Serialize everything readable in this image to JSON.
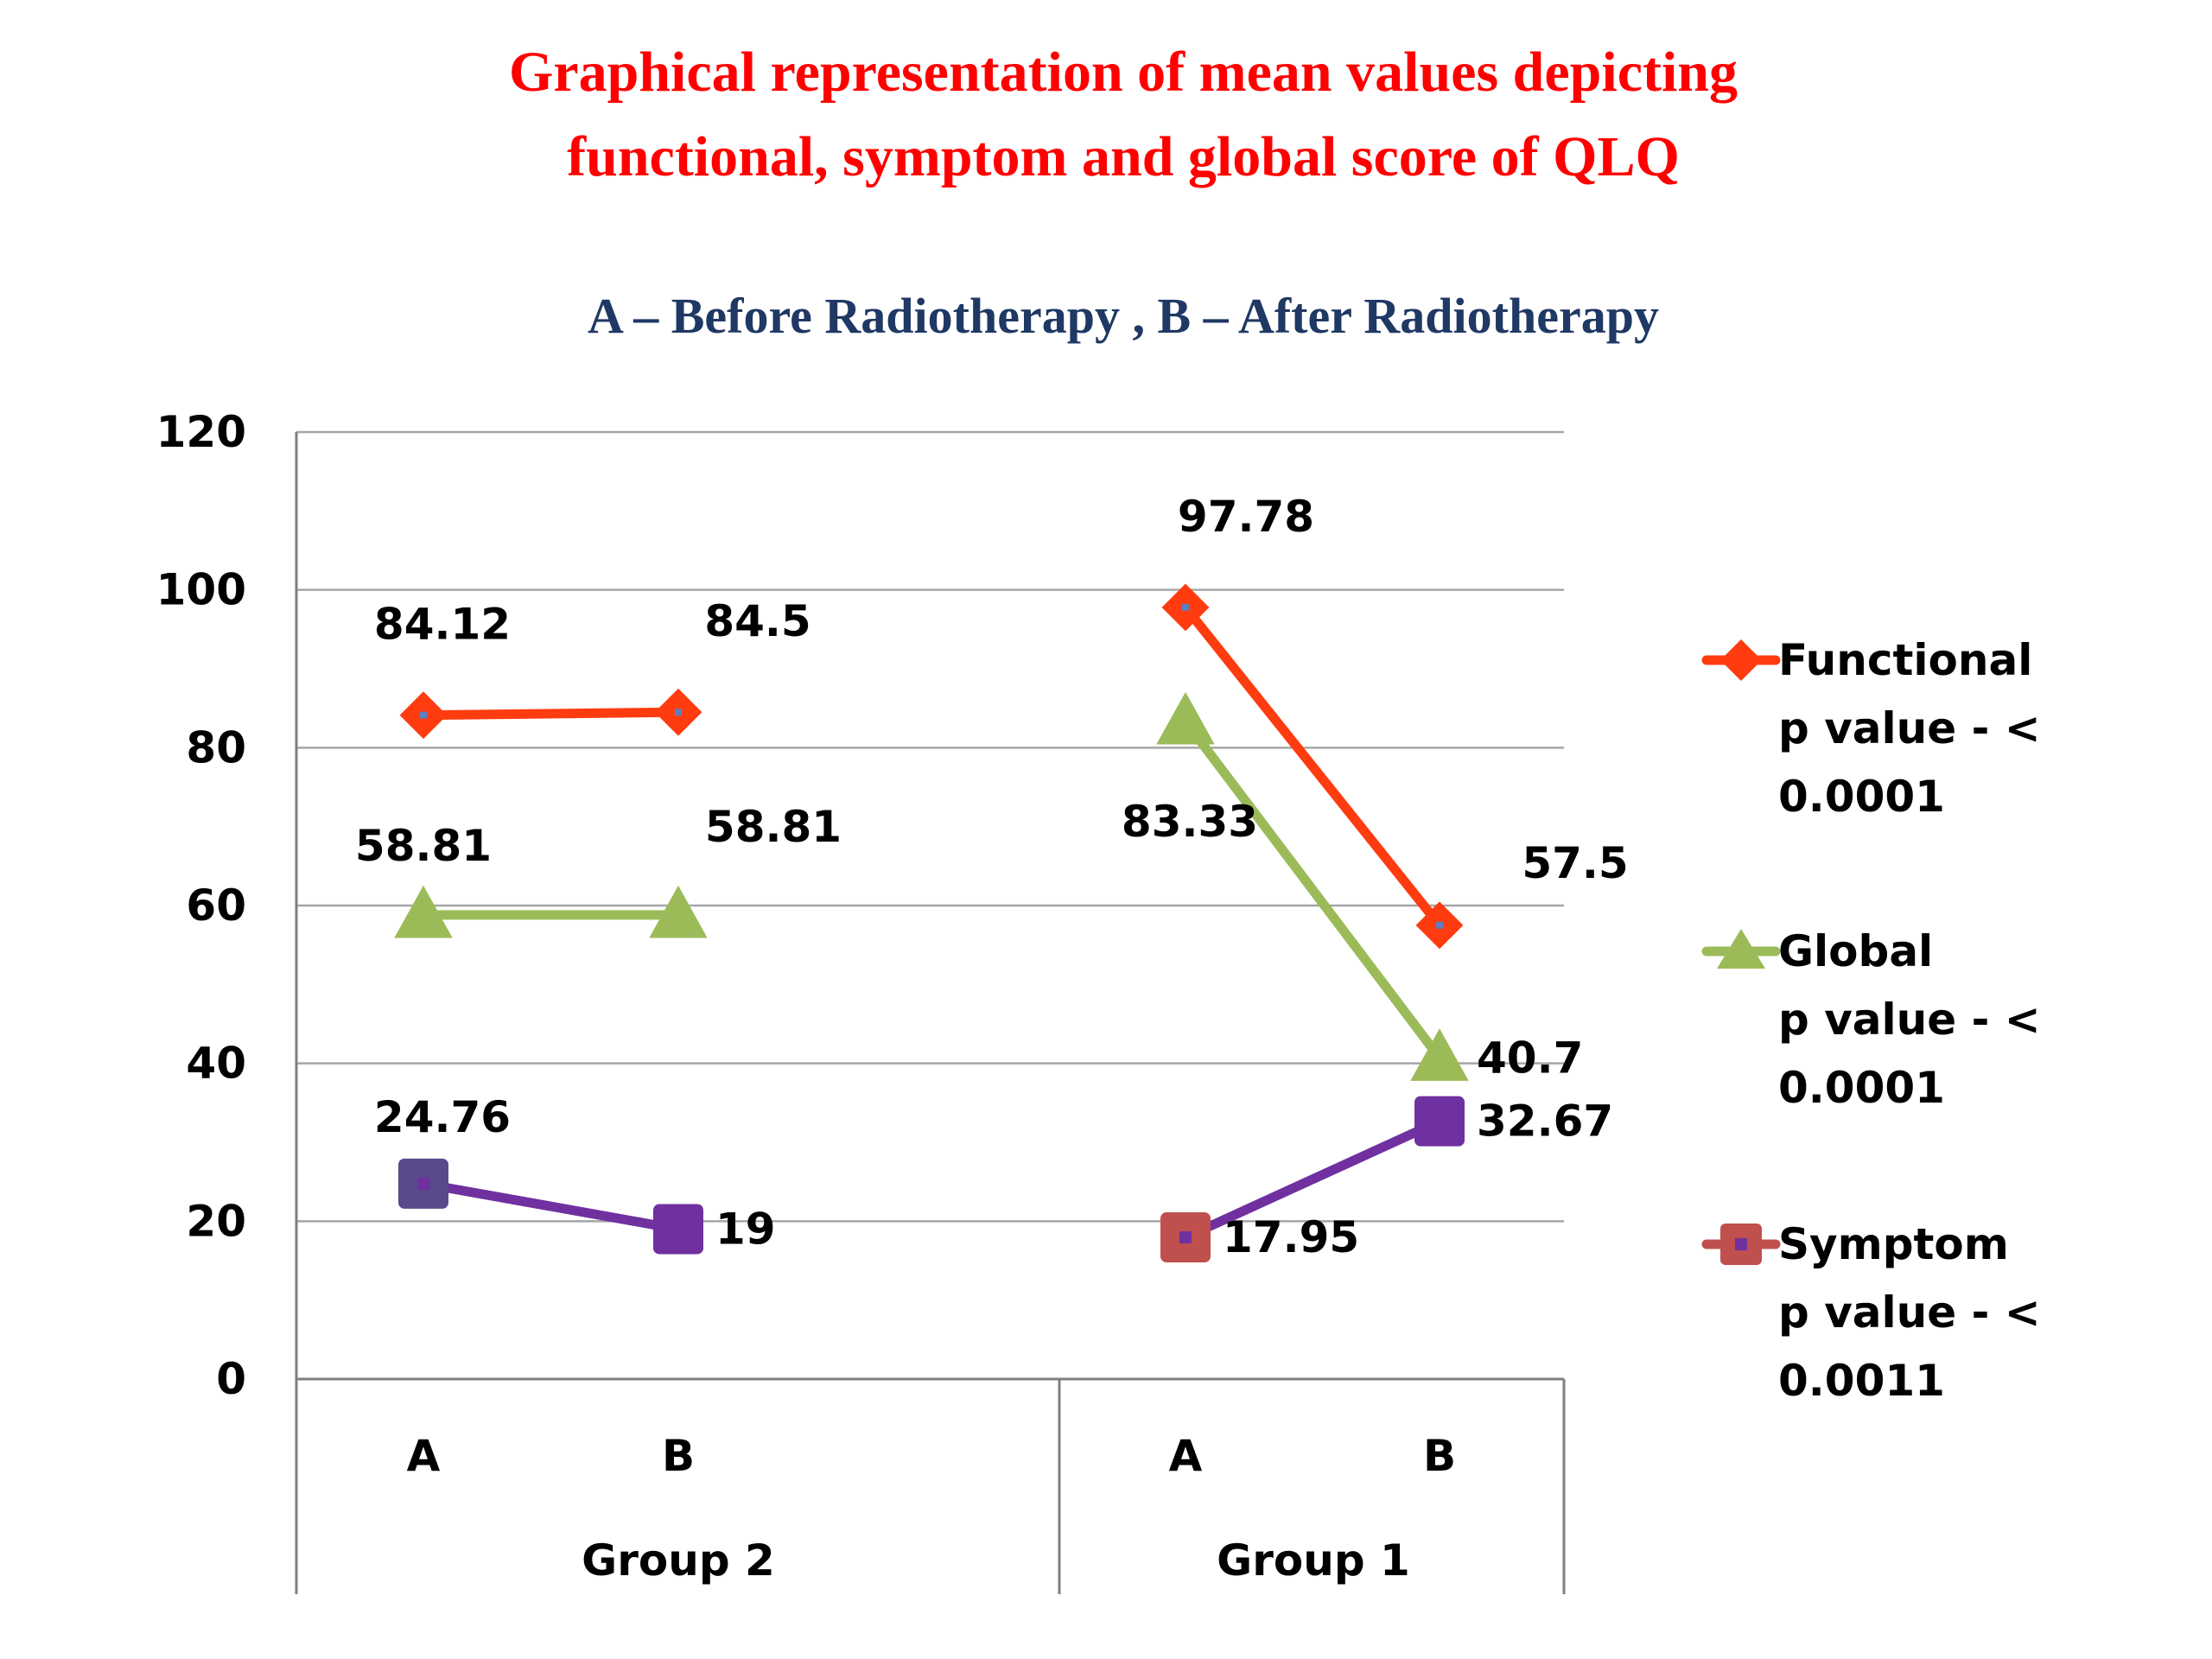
{
  "chart_data": {
    "type": "line",
    "title": "Graphical representation of mean values depicting functional, symptom and global score of QLQ",
    "title_lines": [
      "Graphical representation of mean values depicting",
      "functional, symptom and global score of QLQ"
    ],
    "subtitle": "A – Before Radiotherapy , B – After Radiotherapy",
    "ylim": [
      0,
      120
    ],
    "yticks": [
      "0",
      "20",
      "40",
      "60",
      "80",
      "100",
      "120"
    ],
    "groups": [
      {
        "name": "Group 2",
        "categories": [
          "A",
          "B"
        ]
      },
      {
        "name": "Group 1",
        "categories": [
          "A",
          "B"
        ]
      }
    ],
    "series": [
      {
        "name": "Functional",
        "legend_lines": [
          "Functional",
          "p value -  <",
          "0.0001"
        ],
        "color": "#ff3b10",
        "marker": "diamond",
        "segments": [
          [
            84.12,
            84.5
          ],
          [
            97.78,
            57.5
          ]
        ],
        "labels": [
          [
            "84.12",
            "84.5"
          ],
          [
            "97.78",
            "57.5"
          ]
        ]
      },
      {
        "name": "Global",
        "legend_lines": [
          "Global",
          "p value -  <",
          "0.0001"
        ],
        "color": "#9bbb59",
        "marker": "triangle",
        "segments": [
          [
            58.81,
            58.81
          ],
          [
            83.33,
            40.7
          ]
        ],
        "labels": [
          [
            "58.81",
            "58.81"
          ],
          [
            "83.33",
            "40.7"
          ]
        ]
      },
      {
        "name": "Symptom",
        "legend_lines": [
          "Symptom",
          "p value -  <",
          "0.0011"
        ],
        "color": "#7030a0",
        "legend_marker_color": "#c0504d",
        "marker": "square",
        "segments": [
          [
            24.76,
            19
          ],
          [
            17.95,
            32.67
          ]
        ],
        "labels": [
          [
            "24.76",
            "19"
          ],
          [
            "17.95",
            "32.67"
          ]
        ]
      }
    ],
    "grid": true,
    "legend_position": "right"
  },
  "colors": {
    "title": "#ff0000",
    "subtitle": "#1f3864",
    "text": "#000000",
    "gridline": "#a6a6a6",
    "axis": "#7f7f7f",
    "symptom_group2_a_marker": "#5a4a8a",
    "symptom_group1_a_marker": "#c0504d"
  }
}
